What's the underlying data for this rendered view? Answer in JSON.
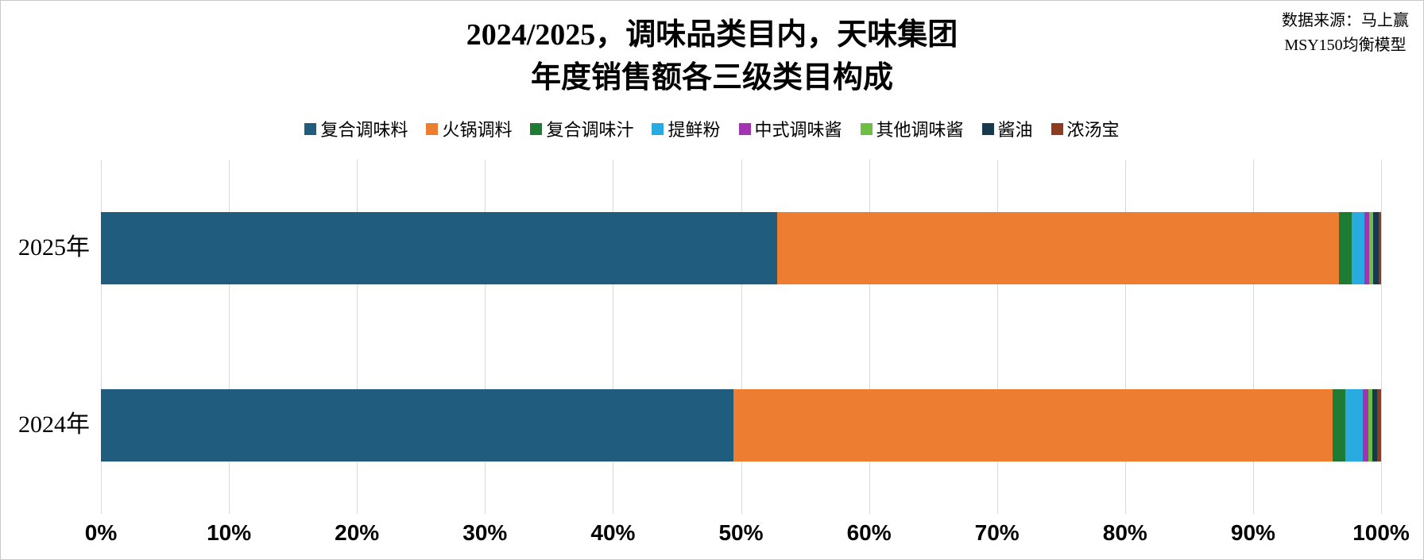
{
  "header": {
    "title_line1": "2024/2025，调味品类目内，天味集团",
    "title_line2": "年度销售额各三级类目构成",
    "source_line1": "数据来源：马上赢",
    "source_line2": "MSY150均衡模型"
  },
  "chart_data": {
    "type": "bar",
    "subtype": "horizontal-stacked-100-percent",
    "title": "2024/2025，调味品类目内，天味集团 年度销售额各三级类目构成",
    "source": "数据来源：马上赢 MSY150均衡模型",
    "categories": [
      "2025年",
      "2024年"
    ],
    "series": [
      {
        "name": "复合调味料",
        "color": "#1F5C7D",
        "values": [
          52.8,
          49.4
        ]
      },
      {
        "name": "火锅调料",
        "color": "#ED7D31",
        "values": [
          43.9,
          46.8
        ]
      },
      {
        "name": "复合调味汁",
        "color": "#1E7B34",
        "values": [
          1.0,
          1.0
        ]
      },
      {
        "name": "提鲜粉",
        "color": "#29ABE2",
        "values": [
          1.0,
          1.4
        ]
      },
      {
        "name": "中式调味酱",
        "color": "#A233B1",
        "values": [
          0.4,
          0.4
        ]
      },
      {
        "name": "其他调味酱",
        "color": "#6FBE44",
        "values": [
          0.3,
          0.3
        ]
      },
      {
        "name": "酱油",
        "color": "#16394E",
        "values": [
          0.4,
          0.4
        ]
      },
      {
        "name": "浓汤宝",
        "color": "#8E3B1F",
        "values": [
          0.2,
          0.3
        ]
      }
    ],
    "xlabel": "",
    "ylabel": "",
    "x_ticks": [
      "0%",
      "10%",
      "20%",
      "30%",
      "40%",
      "50%",
      "60%",
      "70%",
      "80%",
      "90%",
      "100%"
    ],
    "xlim": [
      0,
      100
    ],
    "values_unit": "percent",
    "grid": true,
    "legend_position": "top"
  }
}
